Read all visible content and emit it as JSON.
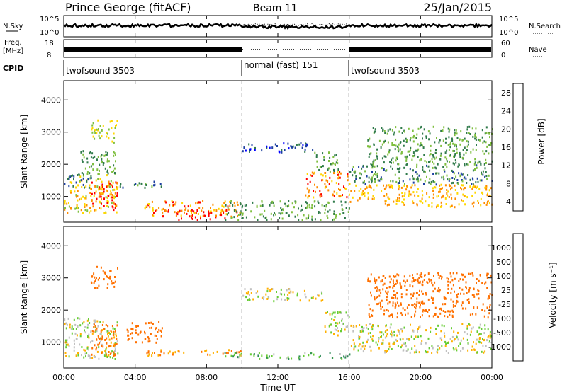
{
  "header": {
    "station": "Prince George (fitACF)",
    "beam": "Beam 11",
    "date": "25/Jan/2015"
  },
  "summary_panels": {
    "nsky_label": "N.Sky",
    "nsky_ticks": [
      "10^5",
      "10^0"
    ],
    "nsearch_label": "N.Search",
    "nsearch_ticks": [
      "10^5",
      "10^0"
    ],
    "freq_label_1": "Freq.",
    "freq_label_2": "[MHz]",
    "freq_ticks": [
      "18",
      "8"
    ],
    "nave_label": "Nave",
    "nave_ticks": [
      "60",
      "0"
    ],
    "cpid_label": "CPID",
    "cpid_segments": [
      {
        "label": "twofsound 3503",
        "start_hour": 0,
        "end_hour": 10
      },
      {
        "label": "normal (fast) 151",
        "start_hour": 10,
        "end_hour": 16
      },
      {
        "label": "twofsound 3503",
        "start_hour": 16,
        "end_hour": 24
      }
    ]
  },
  "colorbars": {
    "power": {
      "label": "Power [dB]",
      "tick_labels": [
        "4",
        "8",
        "12",
        "16",
        "20",
        "24",
        "28"
      ],
      "colors": [
        "#0000ff",
        "#1c3fa0",
        "#2f7a4a",
        "#7fbf3f",
        "#ffd700",
        "#ff8c00",
        "#ff0000"
      ]
    },
    "velocity": {
      "label": "Velocity [m s⁻¹]",
      "tick_labels": [
        "1000",
        "500",
        "100",
        "25",
        "-25",
        "-100",
        "-500",
        "-1000"
      ],
      "colors": [
        "#1a47c8",
        "#3f7fdc",
        "#2e8b57",
        "#66cc33",
        "#c0c0c0",
        "#ffb000",
        "#ff7000",
        "#ff3000",
        "#ff0000"
      ]
    }
  },
  "chart_data": [
    {
      "type": "heatmap",
      "name": "power",
      "ylabel": "Slant Range [km]",
      "xlabel": "",
      "xlim_hours": [
        0,
        24
      ],
      "ylim": [
        200,
        4600
      ],
      "yticks": [
        1000,
        2000,
        3000,
        4000
      ],
      "mode_boundaries_hours": [
        10,
        16
      ],
      "regions": [
        {
          "t": [
            0.0,
            3.0
          ],
          "range": [
            500,
            1700
          ],
          "db": 20
        },
        {
          "t": [
            1.5,
            3.0
          ],
          "range": [
            600,
            1500
          ],
          "db": 27
        },
        {
          "t": [
            0.0,
            1.5
          ],
          "range": [
            1300,
            1700
          ],
          "db": 10
        },
        {
          "t": [
            0.8,
            3.0
          ],
          "range": [
            1700,
            2500
          ],
          "db": 14
        },
        {
          "t": [
            1.5,
            3.0
          ],
          "range": [
            2700,
            3400
          ],
          "db": 18
        },
        {
          "t": [
            3.0,
            5.5
          ],
          "range": [
            1300,
            1500
          ],
          "db": 12
        },
        {
          "t": [
            4.5,
            10.0
          ],
          "range": [
            400,
            900
          ],
          "db": 24
        },
        {
          "t": [
            6.0,
            9.0
          ],
          "range": [
            300,
            600
          ],
          "db": 28
        },
        {
          "t": [
            9.0,
            16.0
          ],
          "range": [
            300,
            900
          ],
          "db": 14
        },
        {
          "t": [
            10.0,
            14.0
          ],
          "range": [
            2400,
            2700
          ],
          "db": 8
        },
        {
          "t": [
            14.0,
            15.5
          ],
          "range": [
            1800,
            2400
          ],
          "db": 14
        },
        {
          "t": [
            13.5,
            16.0
          ],
          "range": [
            1000,
            1800
          ],
          "db": 24
        },
        {
          "t": [
            16.0,
            24.0
          ],
          "range": [
            700,
            1400
          ],
          "db": 22
        },
        {
          "t": [
            16.0,
            24.0
          ],
          "range": [
            1400,
            2000
          ],
          "db": 12
        },
        {
          "t": [
            17.0,
            24.0
          ],
          "range": [
            2000,
            3200
          ],
          "db": 14
        }
      ]
    },
    {
      "type": "heatmap",
      "name": "velocity",
      "ylabel": "Slant Range [km]",
      "xlabel": "Time UT",
      "xlim_hours": [
        0,
        24
      ],
      "ylim": [
        200,
        4600
      ],
      "yticks": [
        1000,
        2000,
        3000,
        4000
      ],
      "xticks": [
        "00:00",
        "04:00",
        "08:00",
        "12:00",
        "16:00",
        "20:00",
        "00:00"
      ],
      "mode_boundaries_hours": [
        10,
        16
      ],
      "regions": [
        {
          "t": [
            0.0,
            3.0
          ],
          "range": [
            500,
            1800
          ],
          "vel": 0
        },
        {
          "t": [
            1.5,
            3.0
          ],
          "range": [
            600,
            1600
          ],
          "vel": -300
        },
        {
          "t": [
            1.5,
            3.0
          ],
          "range": [
            2700,
            3400
          ],
          "vel": -300
        },
        {
          "t": [
            3.5,
            5.5
          ],
          "range": [
            1000,
            1700
          ],
          "vel": -300
        },
        {
          "t": [
            4.5,
            10.0
          ],
          "range": [
            600,
            800
          ],
          "vel": -100
        },
        {
          "t": [
            9.0,
            16.0
          ],
          "range": [
            500,
            700
          ],
          "vel": 80
        },
        {
          "t": [
            10.0,
            14.5
          ],
          "range": [
            2300,
            2700
          ],
          "vel": 0
        },
        {
          "t": [
            14.5,
            16.0
          ],
          "range": [
            1200,
            2000
          ],
          "vel": 0
        },
        {
          "t": [
            16.0,
            24.0
          ],
          "range": [
            700,
            1600
          ],
          "vel": 0
        },
        {
          "t": [
            17.0,
            24.0
          ],
          "range": [
            1800,
            3200
          ],
          "vel": -300
        }
      ]
    }
  ]
}
